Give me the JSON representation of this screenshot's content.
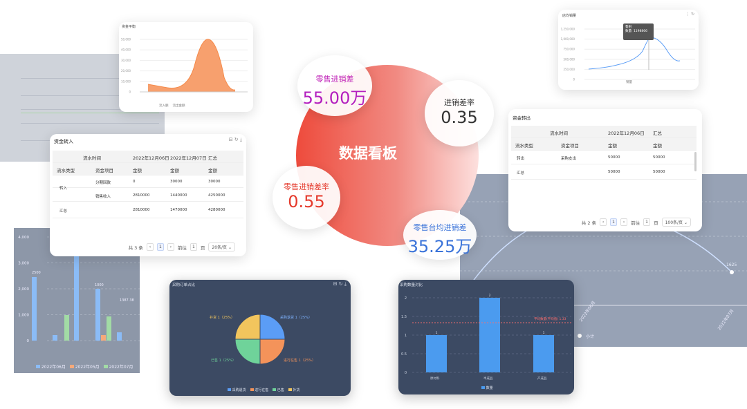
{
  "center": {
    "title": "数据看板",
    "bubbles": [
      {
        "label": "零售进销差",
        "value": "55.00万",
        "label_color": "#c026b8",
        "value_color": "#b31fbf"
      },
      {
        "label": "进销差率",
        "value": "0.35",
        "label_color": "#333333",
        "value_color": "#333333"
      },
      {
        "label": "零售进销差率",
        "value": "0.55",
        "label_color": "#e53a2c",
        "value_color": "#e53a2c"
      },
      {
        "label": "零售台均进销差",
        "value": "35.25万",
        "label_color": "#3a73d9",
        "value_color": "#3a73d9"
      }
    ]
  },
  "area_card": {
    "title": "资金平衡",
    "yticks": [
      "50,000",
      "40,000",
      "30,000",
      "20,000",
      "10,000",
      "0"
    ],
    "legend": [
      "流入额",
      "流出金额"
    ],
    "colors": {
      "area": "#f7a06e",
      "accent": "#5b8ff9"
    }
  },
  "in_table": {
    "title": "资金转入",
    "header1": [
      "流水时间",
      "2022年12月06日",
      "2022年12月07日",
      "汇总"
    ],
    "header2": [
      "流水类型",
      "资金项目",
      "金额",
      "金额",
      "金额"
    ],
    "rows": [
      [
        "转入",
        "分期回款",
        "0",
        "30000",
        "30000"
      ],
      [
        "",
        "销售收入",
        "2810000",
        "1440000",
        "4250000"
      ],
      [
        "汇总",
        "",
        "2810000",
        "1470000",
        "4280000"
      ]
    ],
    "pager": {
      "total": "共 3 条",
      "page": "1",
      "goto_label": "前往",
      "goto_value": "1",
      "page_unit": "页",
      "size": "20条/页"
    }
  },
  "out_table": {
    "title": "资金转出",
    "header1": [
      "流水时间",
      "2022年12月06日",
      "汇总"
    ],
    "header2": [
      "流水类型",
      "资金项目",
      "金额",
      "金额"
    ],
    "rows": [
      [
        "转出",
        "采购支出",
        "50000",
        "50000"
      ],
      [
        "汇总",
        "",
        "50000",
        "50000"
      ]
    ],
    "pager": {
      "total": "共 2 条",
      "page": "1",
      "goto_label": "前往",
      "goto_value": "1",
      "page_unit": "页",
      "size": "100条/页"
    }
  },
  "top_right_line": {
    "title": "店均销量",
    "yticks": [
      "1,250,000",
      "1,000,000",
      "750,000",
      "500,000",
      "250,000",
      "0"
    ],
    "tooltip": {
      "title": "鲁田",
      "line": "数量: 1198866"
    },
    "legend": [
      "销量"
    ]
  },
  "bar_left": {
    "yticks": [
      "4,000",
      "3,000",
      "2,000",
      "1,000",
      "0"
    ],
    "legend": [
      "2022年06月",
      "2022年05月",
      "2022年07月"
    ],
    "colors": [
      "#8bbcf7",
      "#f5a97a",
      "#a2dba5"
    ],
    "data_labels": [
      "2500",
      "1000",
      "1387.38"
    ]
  },
  "pie_card": {
    "title": "采购订单占比",
    "slices": [
      "采购退货 1（25%）",
      "进行在售 1（25%）",
      "已售 1（25%）",
      "补货 1（25%）"
    ],
    "legend": [
      "采购退货",
      "进行在售",
      "已售",
      "补货"
    ],
    "colors": [
      "#5b9df6",
      "#f4935a",
      "#6fd39a",
      "#f2c55d"
    ]
  },
  "bar_dark": {
    "title": "采购数量对比",
    "yticks": [
      "2",
      "1.5",
      "1",
      "0.5",
      "0"
    ],
    "categories": [
      "原材料",
      "半成品",
      "产成品"
    ],
    "values": [
      1,
      2,
      1
    ],
    "legend": [
      "数量"
    ],
    "avg_label": "平均数量(平均值) 1.33"
  },
  "bg_line": {
    "legend": [
      "小计"
    ],
    "x_labels": [
      "2022年06月",
      "2022年07月"
    ],
    "point_label": "1625"
  }
}
